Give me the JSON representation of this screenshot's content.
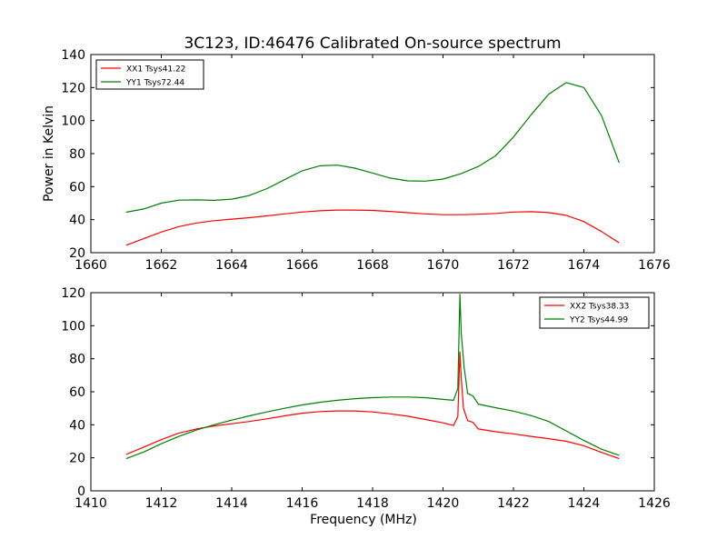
{
  "title": "3C123, ID:46476 Calibrated On-source spectrum",
  "chart_data": [
    {
      "type": "line",
      "title": "3C123, ID:46476 Calibrated On-source spectrum",
      "xlabel": "",
      "ylabel": "Power in Kelvin",
      "xlim": [
        1660,
        1676
      ],
      "ylim": [
        20,
        140
      ],
      "xticks": [
        1660,
        1662,
        1664,
        1666,
        1668,
        1670,
        1672,
        1674,
        1676
      ],
      "yticks": [
        20,
        40,
        60,
        80,
        100,
        120,
        140
      ],
      "grid": false,
      "legend_position": "top-left",
      "series": [
        {
          "name": "XX1 Tsys41.22",
          "color": "#ff0000",
          "x": [
            1661.0,
            1661.5,
            1662.0,
            1662.5,
            1663.0,
            1663.5,
            1664.0,
            1664.5,
            1665.0,
            1665.5,
            1666.0,
            1666.5,
            1667.0,
            1667.5,
            1668.0,
            1668.5,
            1669.0,
            1669.5,
            1670.0,
            1670.5,
            1671.0,
            1671.5,
            1672.0,
            1672.5,
            1673.0,
            1673.5,
            1674.0,
            1674.5,
            1675.0
          ],
          "y": [
            24.5,
            28.5,
            32.5,
            35.8,
            38.0,
            39.4,
            40.3,
            41.2,
            42.3,
            43.5,
            44.6,
            45.4,
            45.8,
            45.8,
            45.6,
            45.0,
            44.2,
            43.5,
            43.0,
            43.0,
            43.3,
            43.8,
            44.6,
            44.8,
            44.3,
            42.6,
            38.8,
            32.8,
            26.0
          ]
        },
        {
          "name": "YY1 Tsys72.44",
          "color": "#008000",
          "x": [
            1661.0,
            1661.5,
            1662.0,
            1662.5,
            1663.0,
            1663.5,
            1664.0,
            1664.5,
            1665.0,
            1665.5,
            1666.0,
            1666.5,
            1667.0,
            1667.5,
            1668.0,
            1668.5,
            1669.0,
            1669.5,
            1670.0,
            1670.5,
            1671.0,
            1671.5,
            1672.0,
            1672.5,
            1673.0,
            1673.5,
            1674.0,
            1674.5,
            1675.0
          ],
          "y": [
            44.5,
            46.5,
            50.0,
            51.8,
            52.0,
            51.7,
            52.4,
            54.6,
            58.8,
            64.2,
            69.6,
            72.6,
            73.0,
            71.2,
            68.2,
            65.2,
            63.5,
            63.3,
            64.6,
            67.8,
            72.2,
            78.8,
            90.0,
            103.5,
            116.0,
            123.0,
            120.0,
            103.0,
            74.5
          ]
        }
      ]
    },
    {
      "type": "line",
      "title": "",
      "xlabel": "Frequency (MHz)",
      "ylabel": "",
      "xlim": [
        1410,
        1426
      ],
      "ylim": [
        0,
        120
      ],
      "xticks": [
        1410,
        1412,
        1414,
        1416,
        1418,
        1420,
        1422,
        1424,
        1426
      ],
      "yticks": [
        0,
        20,
        40,
        60,
        80,
        100,
        120
      ],
      "grid": false,
      "legend_position": "top-right",
      "series": [
        {
          "name": "XX2 Tsys38.33",
          "color": "#ff0000",
          "x": [
            1411.0,
            1411.5,
            1412.0,
            1412.5,
            1413.0,
            1413.5,
            1414.0,
            1414.5,
            1415.0,
            1415.5,
            1416.0,
            1416.5,
            1417.0,
            1417.5,
            1418.0,
            1418.5,
            1419.0,
            1419.5,
            1420.0,
            1420.3,
            1420.42,
            1420.48,
            1420.52,
            1420.58,
            1420.7,
            1420.85,
            1421.0,
            1421.5,
            1422.0,
            1422.5,
            1423.0,
            1423.5,
            1424.0,
            1424.5,
            1425.0
          ],
          "y": [
            22.0,
            26.5,
            31.0,
            35.0,
            37.5,
            39.3,
            40.6,
            42.0,
            43.6,
            45.4,
            47.0,
            48.0,
            48.4,
            48.4,
            47.8,
            46.6,
            45.2,
            43.2,
            41.2,
            39.6,
            45.0,
            84.0,
            68.0,
            50.0,
            42.5,
            41.5,
            37.5,
            35.8,
            34.5,
            33.0,
            31.6,
            30.0,
            27.3,
            23.3,
            19.5
          ]
        },
        {
          "name": "YY2 Tsys44.99",
          "color": "#008000",
          "x": [
            1411.0,
            1411.5,
            1412.0,
            1412.5,
            1413.0,
            1413.5,
            1414.0,
            1414.5,
            1415.0,
            1415.5,
            1416.0,
            1416.5,
            1417.0,
            1417.5,
            1418.0,
            1418.5,
            1419.0,
            1419.5,
            1420.0,
            1420.3,
            1420.42,
            1420.48,
            1420.52,
            1420.6,
            1420.7,
            1420.85,
            1421.0,
            1421.5,
            1422.0,
            1422.5,
            1423.0,
            1423.5,
            1424.0,
            1424.5,
            1425.0
          ],
          "y": [
            19.5,
            23.5,
            28.5,
            33.0,
            36.8,
            40.0,
            42.8,
            45.4,
            47.8,
            50.0,
            52.0,
            53.6,
            54.8,
            55.8,
            56.4,
            56.8,
            56.8,
            56.4,
            55.4,
            54.8,
            62.0,
            119.0,
            95.0,
            75.0,
            59.0,
            57.5,
            52.5,
            50.3,
            48.3,
            45.6,
            42.0,
            36.3,
            30.5,
            25.2,
            21.5
          ]
        }
      ]
    }
  ]
}
